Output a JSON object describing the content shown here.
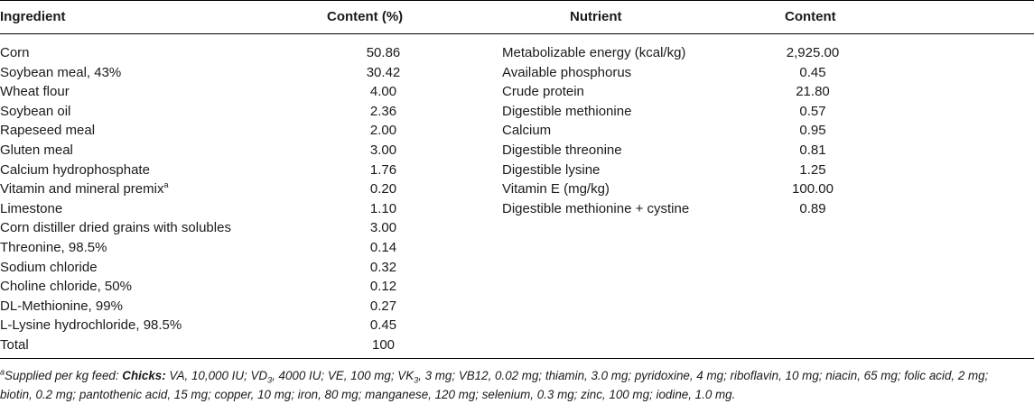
{
  "headers": {
    "ingredient": "Ingredient",
    "content_pct": "Content (%)",
    "nutrient": "Nutrient",
    "content": "Content"
  },
  "ingredients": [
    {
      "name": "Corn",
      "value": "50.86"
    },
    {
      "name": "Soybean meal, 43%",
      "value": "30.42"
    },
    {
      "name": "Wheat flour",
      "value": "4.00"
    },
    {
      "name": "Soybean oil",
      "value": "2.36"
    },
    {
      "name": "Rapeseed meal",
      "value": "2.00"
    },
    {
      "name": "Gluten meal",
      "value": "3.00"
    },
    {
      "name": "Calcium hydrophosphate",
      "value": "1.76"
    },
    {
      "name": "Vitamin and mineral premix",
      "sup": "a",
      "value": "0.20"
    },
    {
      "name": "Limestone",
      "value": "1.10"
    },
    {
      "name": "Corn distiller dried grains with solubles",
      "value": "3.00"
    },
    {
      "name": "Threonine, 98.5%",
      "value": "0.14"
    },
    {
      "name": "Sodium chloride",
      "value": "0.32"
    },
    {
      "name": "Choline chloride, 50%",
      "value": "0.12"
    },
    {
      "name": "DL-Methionine, 99%",
      "value": "0.27"
    },
    {
      "name": "L-Lysine hydrochloride, 98.5%",
      "value": "0.45"
    },
    {
      "name": "Total",
      "value": "100"
    }
  ],
  "nutrients": [
    {
      "name": "Metabolizable energy (kcal/kg)",
      "value": "2,925.00"
    },
    {
      "name": "Available phosphorus",
      "value": "0.45"
    },
    {
      "name": "Crude protein",
      "value": "21.80"
    },
    {
      "name": "Digestible methionine",
      "value": "0.57"
    },
    {
      "name": "Calcium",
      "value": "0.95"
    },
    {
      "name": "Digestible threonine",
      "value": "0.81"
    },
    {
      "name": "Digestible lysine",
      "value": "1.25"
    },
    {
      "name": "Vitamin E (mg/kg)",
      "value": "100.00"
    },
    {
      "name": "Digestible methionine + cystine",
      "value": "0.89"
    }
  ],
  "footnote": {
    "marker": "a",
    "lead": "Supplied per kg feed: ",
    "bold": "Chicks:",
    "p1": " VA, 10,000 IU; VD",
    "sub1": "3",
    "p2": ", 4000 IU; VE, 100 mg; VK",
    "sub2": "3",
    "p3": ", 3 mg; VB12, 0.02 mg; thiamin, 3.0 mg; pyridoxine, 4 mg; riboflavin, 10 mg; niacin, 65 mg; folic acid, 2 mg;",
    "line2": "biotin, 0.2 mg; pantothenic acid, 15 mg; copper, 10 mg; iron, 80 mg; manganese, 120 mg; selenium, 0.3 mg; zinc, 100 mg; iodine, 1.0 mg."
  }
}
